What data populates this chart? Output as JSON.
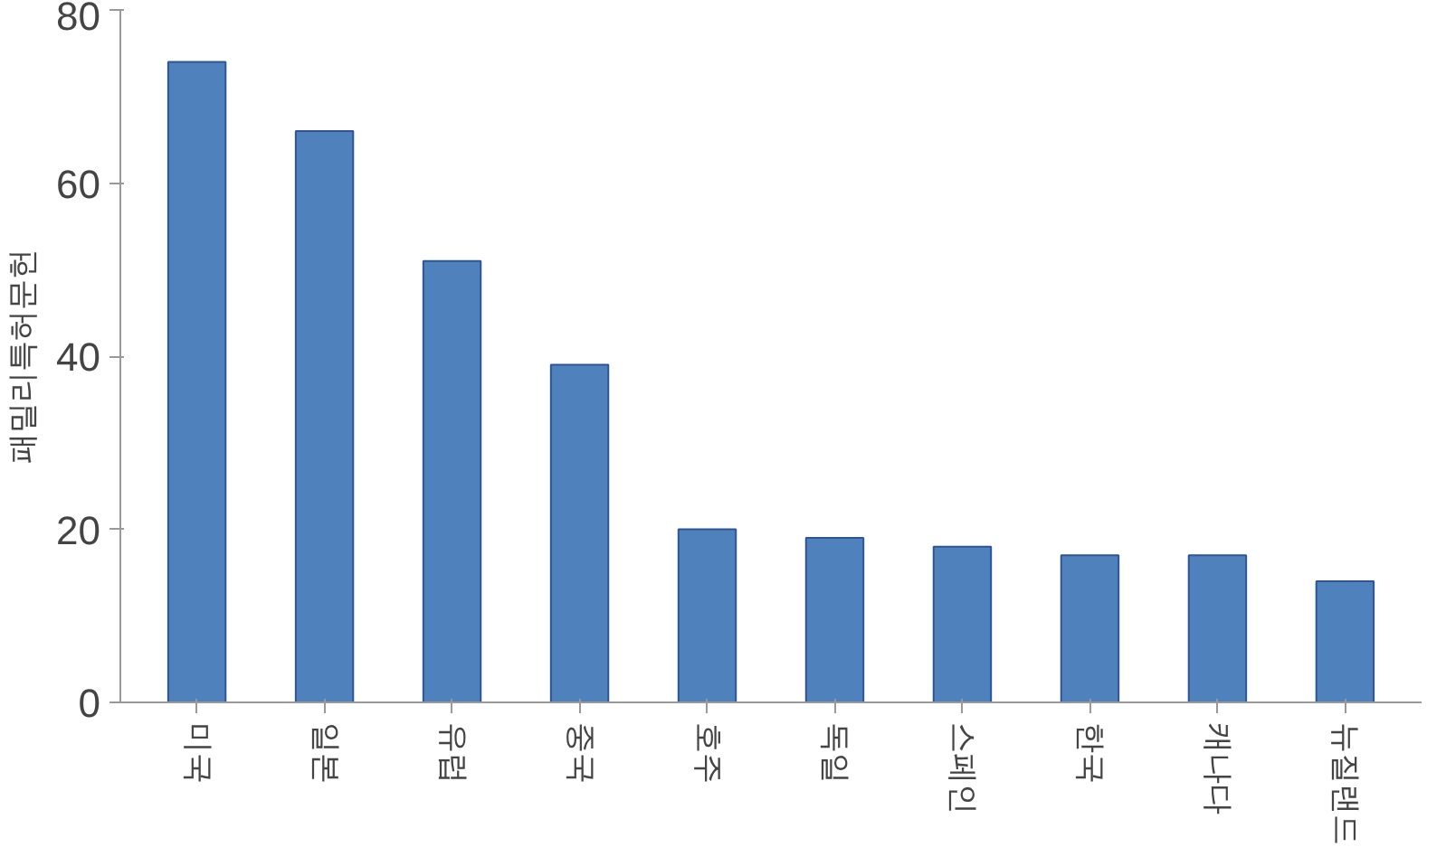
{
  "chart_data": {
    "type": "bar",
    "ylabel": "패밀리특허문헌",
    "categories": [
      "미국",
      "일본",
      "유럽",
      "중국",
      "호주",
      "독일",
      "스페인",
      "한국",
      "캐나다",
      "뉴질랜드"
    ],
    "values": [
      74,
      66,
      51,
      39,
      20,
      19,
      18,
      17,
      17,
      14
    ],
    "color": "#4f81bd",
    "ylim": [
      0,
      80
    ],
    "yticks": [
      0,
      20,
      40,
      60,
      80
    ],
    "grid": false
  }
}
